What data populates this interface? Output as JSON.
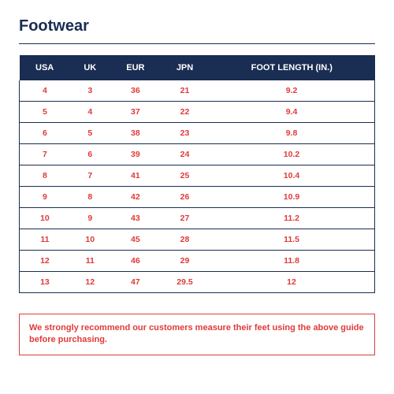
{
  "colors": {
    "navy": "#1a2d52",
    "red": "#e03a3a",
    "border": "#1a2d52"
  },
  "title": {
    "text": "Footwear",
    "color": "#1a2d52",
    "fontsize": 20
  },
  "table": {
    "header_bg": "#1a2d52",
    "header_fg": "#ffffff",
    "cell_fg": "#e03a3a",
    "border_color": "#1a2d52",
    "columns": [
      "USA",
      "UK",
      "EUR",
      "JPN",
      "FOOT LENGTH (IN.)"
    ],
    "rows": [
      [
        "4",
        "3",
        "36",
        "21",
        "9.2"
      ],
      [
        "5",
        "4",
        "37",
        "22",
        "9.4"
      ],
      [
        "6",
        "5",
        "38",
        "23",
        "9.8"
      ],
      [
        "7",
        "6",
        "39",
        "24",
        "10.2"
      ],
      [
        "8",
        "7",
        "41",
        "25",
        "10.4"
      ],
      [
        "9",
        "8",
        "42",
        "26",
        "10.9"
      ],
      [
        "10",
        "9",
        "43",
        "27",
        "11.2"
      ],
      [
        "11",
        "10",
        "45",
        "28",
        "11.5"
      ],
      [
        "12",
        "11",
        "46",
        "29",
        "11.8"
      ],
      [
        "13",
        "12",
        "47",
        "29.5",
        "12"
      ]
    ]
  },
  "note": {
    "text": "We strongly recommend our customers measure their feet using the above guide before purchasing.",
    "border_color": "#e03a3a",
    "text_color": "#e03a3a"
  }
}
